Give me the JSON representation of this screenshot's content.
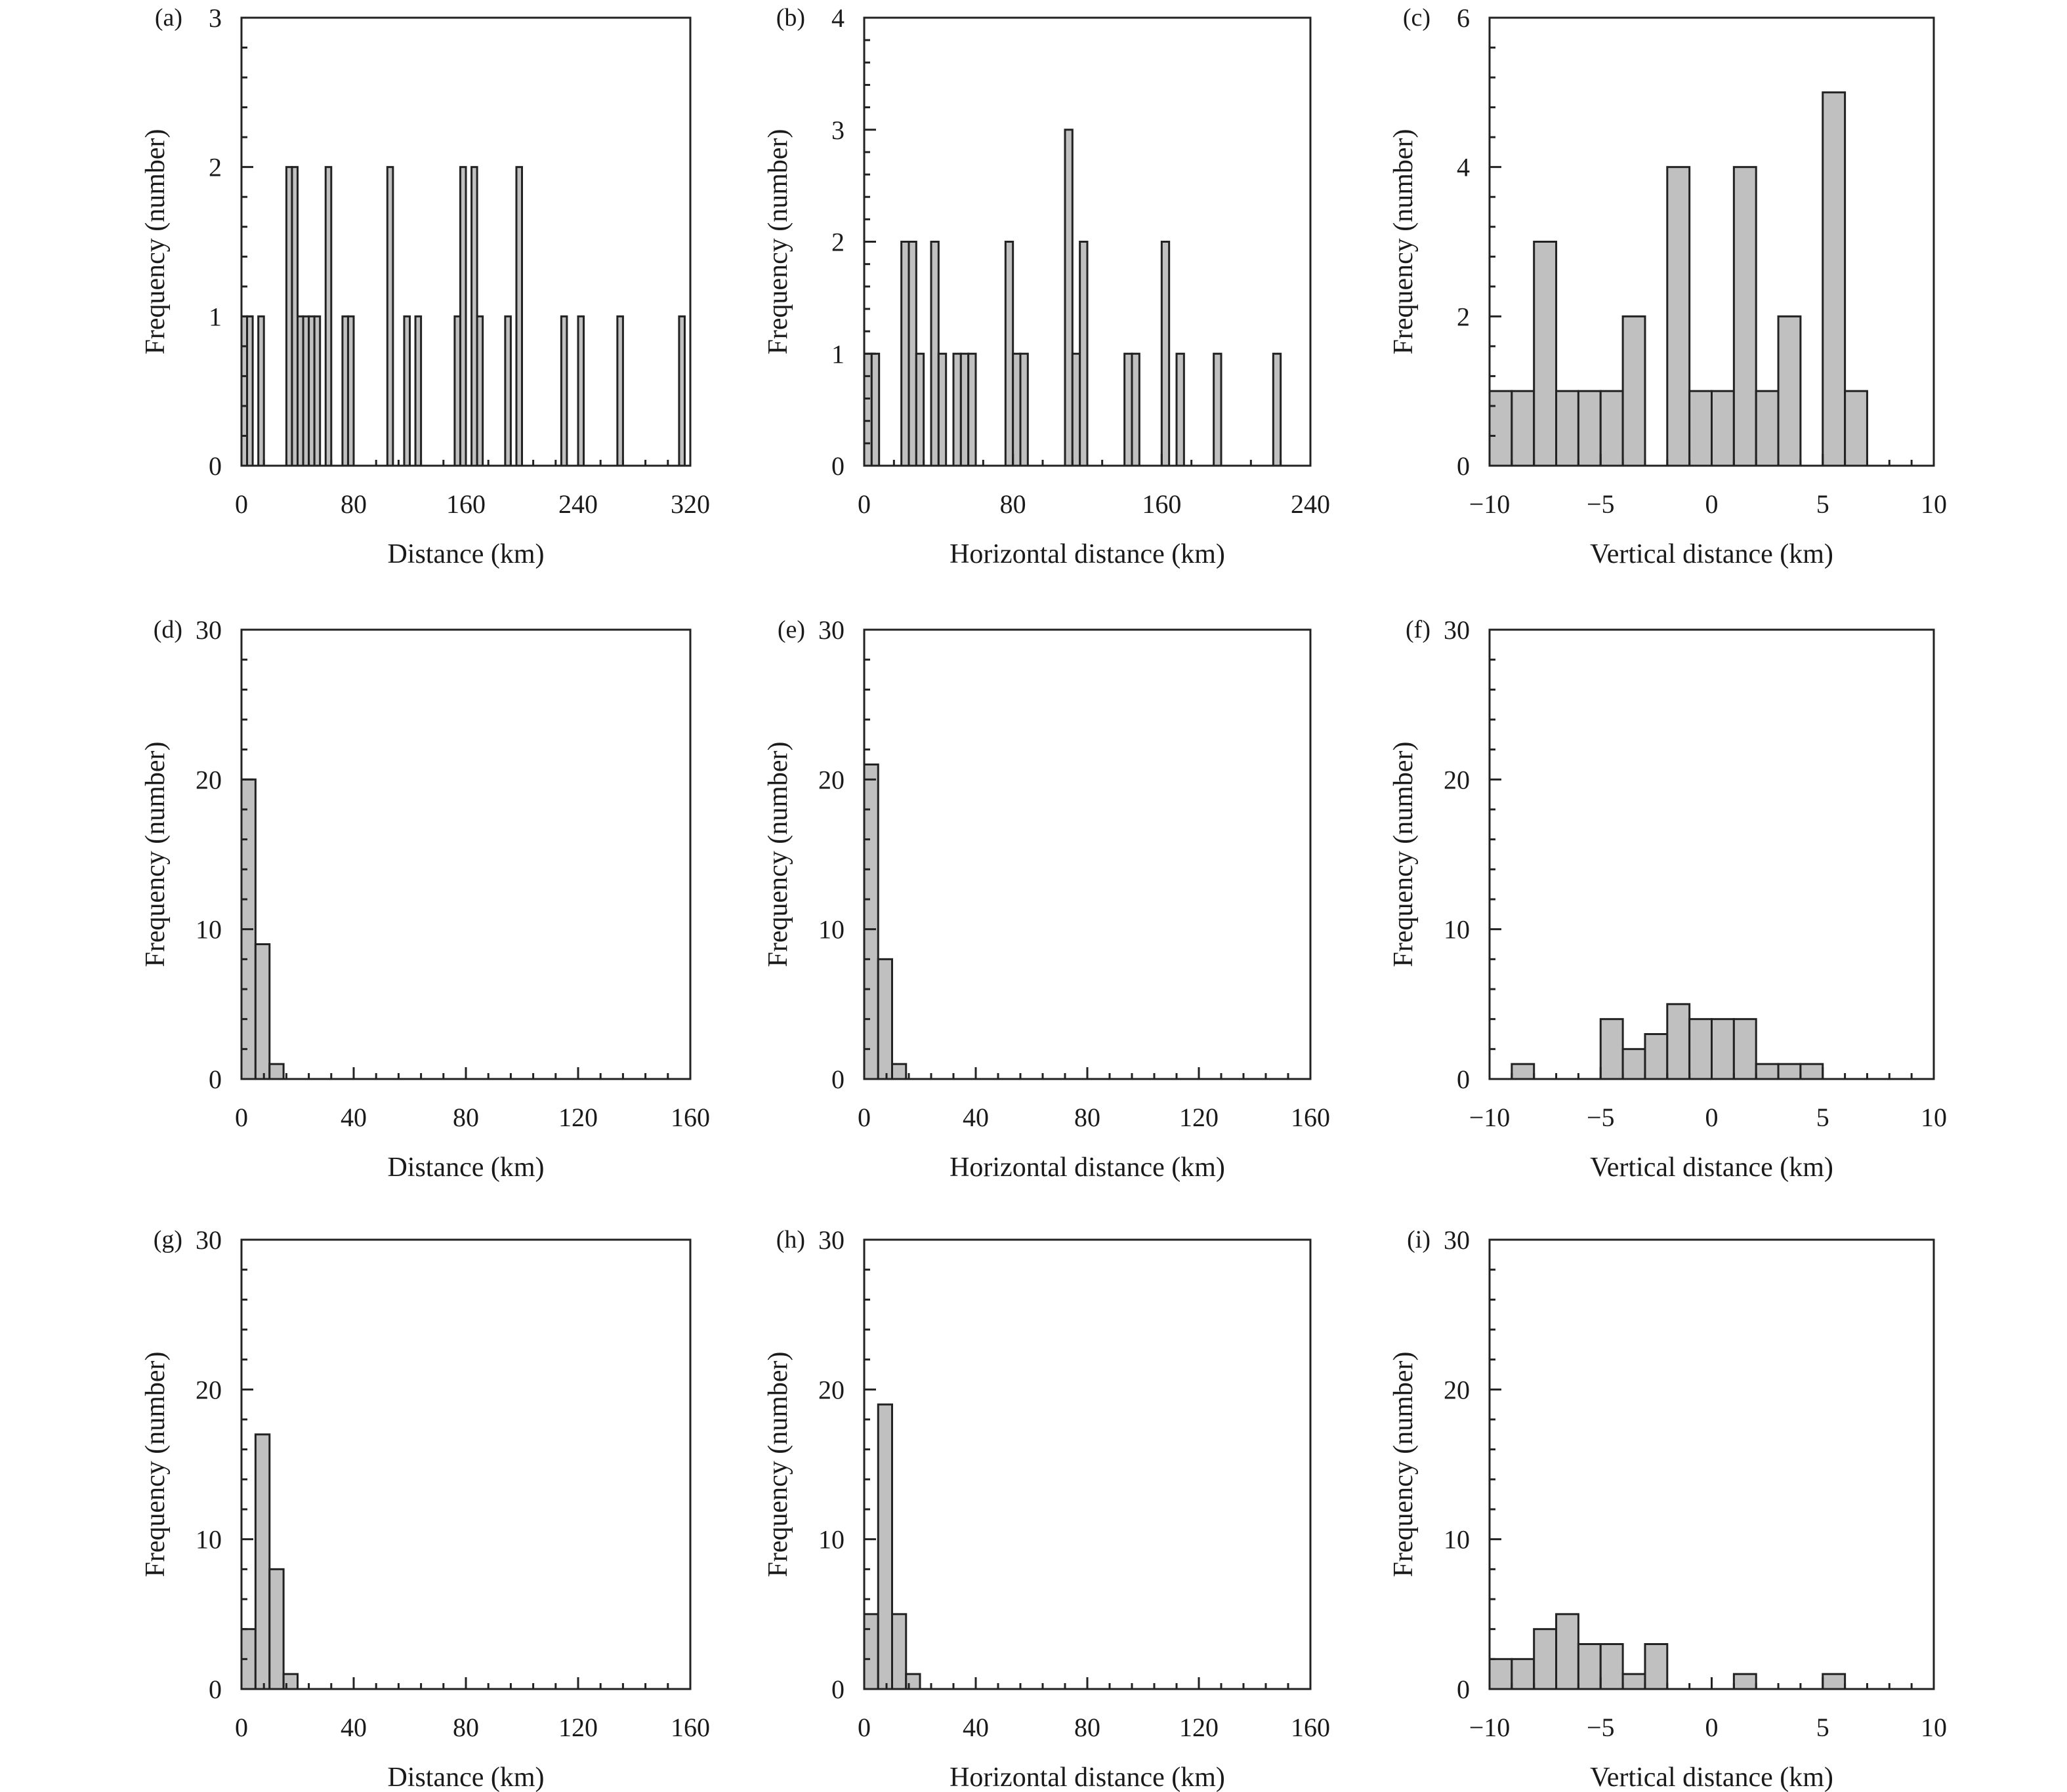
{
  "chart_data": [
    {
      "panel": "(a)",
      "type": "bar",
      "xlabel": "Distance (km)",
      "ylabel": "Frequency (number)",
      "xlim": [
        0,
        320
      ],
      "ylim": [
        0,
        3
      ],
      "xticks": [
        0,
        80,
        160,
        240,
        320
      ],
      "yticks": [
        0,
        1,
        2,
        3
      ],
      "bin_width": 4,
      "bars": [
        [
          0,
          1
        ],
        [
          4,
          1
        ],
        [
          12,
          1
        ],
        [
          32,
          2
        ],
        [
          36,
          2
        ],
        [
          40,
          1
        ],
        [
          44,
          1
        ],
        [
          48,
          1
        ],
        [
          52,
          1
        ],
        [
          60,
          2
        ],
        [
          72,
          1
        ],
        [
          76,
          1
        ],
        [
          104,
          2
        ],
        [
          116,
          1
        ],
        [
          124,
          1
        ],
        [
          152,
          1
        ],
        [
          156,
          2
        ],
        [
          164,
          2
        ],
        [
          168,
          1
        ],
        [
          188,
          1
        ],
        [
          196,
          2
        ],
        [
          228,
          1
        ],
        [
          240,
          1
        ],
        [
          268,
          1
        ],
        [
          312,
          1
        ]
      ]
    },
    {
      "panel": "(b)",
      "type": "bar",
      "xlabel": "Horizontal distance (km)",
      "ylabel": "Frequency (number)",
      "xlim": [
        0,
        240
      ],
      "ylim": [
        0,
        4
      ],
      "xticks": [
        0,
        80,
        160,
        240
      ],
      "yticks": [
        0,
        1,
        2,
        3,
        4
      ],
      "bin_width": 4,
      "bars": [
        [
          0,
          1
        ],
        [
          4,
          1
        ],
        [
          20,
          2
        ],
        [
          24,
          2
        ],
        [
          28,
          1
        ],
        [
          36,
          2
        ],
        [
          40,
          1
        ],
        [
          48,
          1
        ],
        [
          52,
          1
        ],
        [
          56,
          1
        ],
        [
          76,
          2
        ],
        [
          80,
          1
        ],
        [
          84,
          1
        ],
        [
          108,
          3
        ],
        [
          112,
          1
        ],
        [
          116,
          2
        ],
        [
          140,
          1
        ],
        [
          144,
          1
        ],
        [
          160,
          2
        ],
        [
          168,
          1
        ],
        [
          188,
          1
        ],
        [
          220,
          1
        ]
      ]
    },
    {
      "panel": "(c)",
      "type": "bar",
      "xlabel": "Vertical distance (km)",
      "ylabel": "Frequency (number)",
      "xlim": [
        -10,
        10
      ],
      "ylim": [
        0,
        6
      ],
      "xticks": [
        -10,
        -5,
        0,
        5,
        10
      ],
      "xtick_labels": [
        "−10",
        "−5",
        "0",
        "5",
        "10"
      ],
      "yticks": [
        0,
        2,
        4,
        6
      ],
      "bin_width": 1,
      "bars": [
        [
          -10,
          1
        ],
        [
          -9,
          1
        ],
        [
          -8,
          3
        ],
        [
          -7,
          1
        ],
        [
          -6,
          1
        ],
        [
          -5,
          1
        ],
        [
          -4,
          2
        ],
        [
          -2,
          4
        ],
        [
          -1,
          1
        ],
        [
          0,
          1
        ],
        [
          1,
          4
        ],
        [
          2,
          1
        ],
        [
          3,
          2
        ],
        [
          5,
          5
        ],
        [
          6,
          1
        ]
      ]
    },
    {
      "panel": "(d)",
      "type": "bar",
      "xlabel": "Distance (km)",
      "ylabel": "Frequency (number)",
      "xlim": [
        0,
        160
      ],
      "ylim": [
        0,
        30
      ],
      "xticks": [
        0,
        40,
        80,
        120,
        160
      ],
      "yticks": [
        0,
        10,
        20,
        30
      ],
      "bin_width": 5,
      "bars": [
        [
          0,
          20
        ],
        [
          5,
          9
        ],
        [
          10,
          1
        ]
      ]
    },
    {
      "panel": "(e)",
      "type": "bar",
      "xlabel": "Horizontal distance (km)",
      "ylabel": "Frequency (number)",
      "xlim": [
        0,
        160
      ],
      "ylim": [
        0,
        30
      ],
      "xticks": [
        0,
        40,
        80,
        120,
        160
      ],
      "yticks": [
        0,
        10,
        20,
        30
      ],
      "bin_width": 5,
      "bars": [
        [
          0,
          21
        ],
        [
          5,
          8
        ],
        [
          10,
          1
        ]
      ]
    },
    {
      "panel": "(f)",
      "type": "bar",
      "xlabel": "Vertical distance (km)",
      "ylabel": "Frequency (number)",
      "xlim": [
        -10,
        10
      ],
      "ylim": [
        0,
        30
      ],
      "xticks": [
        -10,
        -5,
        0,
        5,
        10
      ],
      "xtick_labels": [
        "−10",
        "−5",
        "0",
        "5",
        "10"
      ],
      "yticks": [
        0,
        10,
        20,
        30
      ],
      "bin_width": 1,
      "bars": [
        [
          -9,
          1
        ],
        [
          -5,
          4
        ],
        [
          -4,
          2
        ],
        [
          -3,
          3
        ],
        [
          -2,
          5
        ],
        [
          -1,
          4
        ],
        [
          0,
          4
        ],
        [
          1,
          4
        ],
        [
          2,
          1
        ],
        [
          3,
          1
        ],
        [
          4,
          1
        ]
      ]
    },
    {
      "panel": "(g)",
      "type": "bar",
      "xlabel": "Distance (km)",
      "ylabel": "Frequency (number)",
      "xlim": [
        0,
        160
      ],
      "ylim": [
        0,
        30
      ],
      "xticks": [
        0,
        40,
        80,
        120,
        160
      ],
      "yticks": [
        0,
        10,
        20,
        30
      ],
      "bin_width": 5,
      "bars": [
        [
          0,
          4
        ],
        [
          5,
          17
        ],
        [
          10,
          8
        ],
        [
          15,
          1
        ]
      ]
    },
    {
      "panel": "(h)",
      "type": "bar",
      "xlabel": "Horizontal distance (km)",
      "ylabel": "Frequency (number)",
      "xlim": [
        0,
        160
      ],
      "ylim": [
        0,
        30
      ],
      "xticks": [
        0,
        40,
        80,
        120,
        160
      ],
      "yticks": [
        0,
        10,
        20,
        30
      ],
      "bin_width": 5,
      "bars": [
        [
          0,
          5
        ],
        [
          5,
          19
        ],
        [
          10,
          5
        ],
        [
          15,
          1
        ]
      ]
    },
    {
      "panel": "(i)",
      "type": "bar",
      "xlabel": "Vertical distance (km)",
      "ylabel": "Frequency (number)",
      "xlim": [
        -10,
        10
      ],
      "ylim": [
        0,
        30
      ],
      "xticks": [
        -10,
        -5,
        0,
        5,
        10
      ],
      "xtick_labels": [
        "−10",
        "−5",
        "0",
        "5",
        "10"
      ],
      "yticks": [
        0,
        10,
        20,
        30
      ],
      "bin_width": 1,
      "bars": [
        [
          -10,
          2
        ],
        [
          -9,
          2
        ],
        [
          -8,
          4
        ],
        [
          -7,
          5
        ],
        [
          -6,
          3
        ],
        [
          -5,
          3
        ],
        [
          -4,
          1
        ],
        [
          -3,
          3
        ],
        [
          1,
          1
        ],
        [
          5,
          1
        ]
      ]
    }
  ]
}
